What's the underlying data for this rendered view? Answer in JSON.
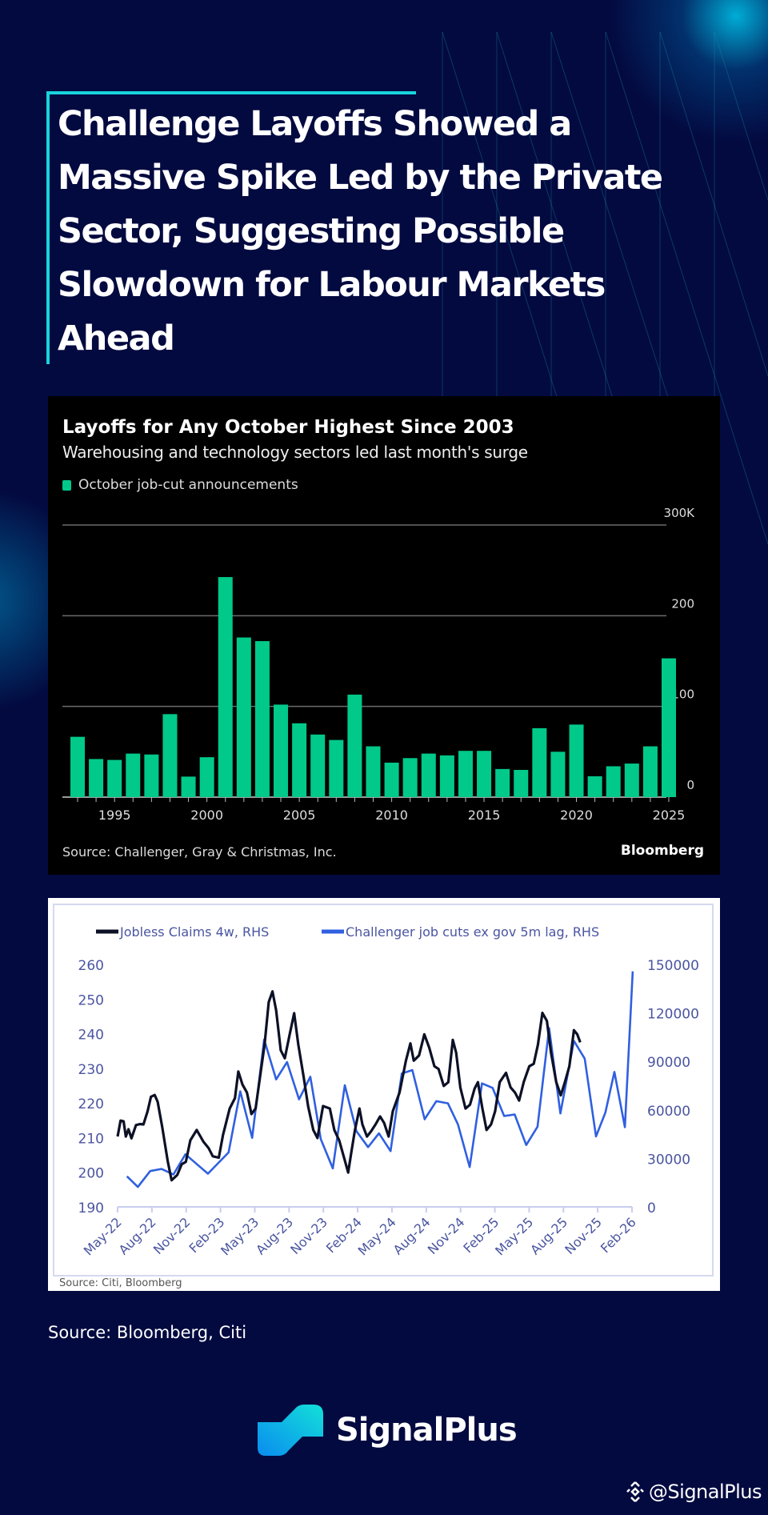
{
  "headline": "Challenge Layoffs Showed a Massive Spike Led by the Private Sector, Suggesting Possible Slowdown for Labour Markets Ahead",
  "colors": {
    "background": "#030a40",
    "accent": "#19d3dc",
    "bar": "#00c98a",
    "jobless": "#0d1126",
    "challenger": "#3060e0",
    "axis_text": "#4a55a0"
  },
  "chart_data": [
    {
      "type": "bar",
      "title": "Layoffs for Any October Highest Since 2003",
      "subtitle": "Warehousing and technology sectors led last month's surge",
      "legend": "October job-cut announcements",
      "source": "Source: Challenger, Gray & Christmas, Inc.",
      "brand": "Bloomberg",
      "categories": [
        1993,
        1994,
        1995,
        1996,
        1997,
        1998,
        1999,
        2000,
        2001,
        2002,
        2003,
        2004,
        2005,
        2006,
        2007,
        2008,
        2009,
        2010,
        2011,
        2012,
        2013,
        2014,
        2015,
        2016,
        2017,
        2018,
        2019,
        2020,
        2021,
        2022,
        2023,
        2024,
        2025
      ],
      "values": [
        66.5,
        42,
        41,
        48,
        47,
        91.5,
        22.6,
        44,
        242.6,
        176,
        172,
        102,
        81.4,
        69,
        63,
        113,
        56,
        38,
        43,
        48,
        46,
        51,
        51,
        31,
        30,
        76,
        50,
        80,
        23,
        34,
        37,
        56,
        153
      ],
      "unit": "thousands",
      "ylim": [
        0,
        300
      ],
      "y_ticks": [
        "0",
        "100",
        "200",
        "300K"
      ],
      "x_tick_labels": [
        "1995",
        "2000",
        "2005",
        "2010",
        "2015",
        "2020",
        "2025"
      ],
      "grid": true,
      "axis_side": "right"
    },
    {
      "type": "line",
      "legend_position": "top",
      "source": "Source: Citi, Bloomberg",
      "x_tick_labels": [
        "May-22",
        "Aug-22",
        "Nov-22",
        "Feb-23",
        "May-23",
        "Aug-23",
        "Nov-23",
        "Feb-24",
        "May-24",
        "Aug-24",
        "Nov-24",
        "Feb-25",
        "May-25",
        "Aug-25",
        "Nov-25",
        "Feb-26"
      ],
      "xlim": [
        "2022-05-01",
        "2026-02-01"
      ],
      "y_left": {
        "ticks": [
          "190",
          "200",
          "210",
          "220",
          "230",
          "240",
          "250",
          "260"
        ],
        "lim": [
          190,
          260
        ]
      },
      "y_right": {
        "ticks": [
          "0",
          "30000",
          "60000",
          "90000",
          "120000",
          "150000"
        ],
        "lim": [
          0,
          150000
        ]
      },
      "series": [
        {
          "name": "Jobless Claims 4w, RHS",
          "axis": "left",
          "points": [
            [
              "2022-05-01",
              210.3
            ],
            [
              "2022-05-09",
              214.9
            ],
            [
              "2022-05-17",
              214.7
            ],
            [
              "2022-05-23",
              210.3
            ],
            [
              "2022-05-30",
              212.4
            ],
            [
              "2022-06-07",
              209.8
            ],
            [
              "2022-06-19",
              213.6
            ],
            [
              "2022-06-30",
              213.9
            ],
            [
              "2022-07-09",
              213.8
            ],
            [
              "2022-07-20",
              217.6
            ],
            [
              "2022-07-29",
              221.8
            ],
            [
              "2022-08-08",
              222.3
            ],
            [
              "2022-08-16",
              220.3
            ],
            [
              "2022-08-28",
              213
            ],
            [
              "2022-09-12",
              203
            ],
            [
              "2022-09-22",
              197.7
            ],
            [
              "2022-10-07",
              199.2
            ],
            [
              "2022-10-19",
              202.3
            ],
            [
              "2022-10-30",
              203
            ],
            [
              "2022-11-11",
              209.2
            ],
            [
              "2022-11-28",
              212.2
            ],
            [
              "2022-12-16",
              208.8
            ],
            [
              "2022-12-30",
              206.9
            ],
            [
              "2023-01-10",
              204.6
            ],
            [
              "2023-01-26",
              204.2
            ],
            [
              "2023-02-06",
              210.7
            ],
            [
              "2023-02-24",
              218.4
            ],
            [
              "2023-03-10",
              221.4
            ],
            [
              "2023-03-19",
              229.1
            ],
            [
              "2023-03-30",
              225.3
            ],
            [
              "2023-04-11",
              223
            ],
            [
              "2023-04-23",
              216.8
            ],
            [
              "2023-05-04",
              218.4
            ],
            [
              "2023-05-16",
              227.6
            ],
            [
              "2023-05-28",
              236.8
            ],
            [
              "2023-06-08",
              249.1
            ],
            [
              "2023-06-18",
              252.2
            ],
            [
              "2023-06-28",
              246.7
            ],
            [
              "2023-07-10",
              235.2
            ],
            [
              "2023-07-21",
              232.9
            ],
            [
              "2023-08-03",
              239.8
            ],
            [
              "2023-08-15",
              245.9
            ],
            [
              "2023-08-26",
              236.8
            ],
            [
              "2023-09-09",
              227.6
            ],
            [
              "2023-09-21",
              219.1
            ],
            [
              "2023-10-05",
              212.2
            ],
            [
              "2023-10-16",
              209.9
            ],
            [
              "2023-10-31",
              219.1
            ],
            [
              "2023-11-18",
              218.4
            ],
            [
              "2023-11-30",
              212.2
            ],
            [
              "2023-12-13",
              209.2
            ],
            [
              "2023-12-25",
              204.6
            ],
            [
              "2024-01-06",
              199.9
            ],
            [
              "2024-01-15",
              206.1
            ],
            [
              "2024-01-24",
              212.2
            ],
            [
              "2024-02-05",
              218.4
            ],
            [
              "2024-02-13",
              213.8
            ],
            [
              "2024-02-25",
              210.3
            ],
            [
              "2024-03-07",
              211.8
            ],
            [
              "2024-03-19",
              213.8
            ],
            [
              "2024-03-31",
              216.1
            ],
            [
              "2024-04-11",
              214.2
            ],
            [
              "2024-04-23",
              210.3
            ],
            [
              "2024-05-04",
              217.6
            ],
            [
              "2024-05-22",
              223
            ],
            [
              "2024-06-08",
              232.2
            ],
            [
              "2024-06-20",
              237.2
            ],
            [
              "2024-06-29",
              232.2
            ],
            [
              "2024-07-13",
              233.7
            ],
            [
              "2024-07-27",
              239.8
            ],
            [
              "2024-08-09",
              236
            ],
            [
              "2024-08-23",
              230.6
            ],
            [
              "2024-09-03",
              229.8
            ],
            [
              "2024-09-17",
              224.9
            ],
            [
              "2024-09-29",
              226
            ],
            [
              "2024-10-11",
              238.2
            ],
            [
              "2024-10-20",
              234.5
            ],
            [
              "2024-10-31",
              224.5
            ],
            [
              "2024-11-14",
              218.4
            ],
            [
              "2024-11-26",
              219.5
            ],
            [
              "2024-12-08",
              224.1
            ],
            [
              "2024-12-17",
              226
            ],
            [
              "2024-12-29",
              218.4
            ],
            [
              "2025-01-09",
              212.2
            ],
            [
              "2025-01-21",
              213.8
            ],
            [
              "2025-02-01",
              217.6
            ],
            [
              "2025-02-13",
              226
            ],
            [
              "2025-03-02",
              228.7
            ],
            [
              "2025-03-14",
              224.5
            ],
            [
              "2025-03-26",
              223
            ],
            [
              "2025-04-06",
              220.7
            ],
            [
              "2025-04-18",
              226
            ],
            [
              "2025-05-03",
              230.6
            ],
            [
              "2025-05-15",
              231.3
            ],
            [
              "2025-05-26",
              236.8
            ],
            [
              "2025-06-07",
              246
            ],
            [
              "2025-06-19",
              243.7
            ],
            [
              "2025-06-30",
              234.5
            ],
            [
              "2025-07-14",
              226
            ],
            [
              "2025-07-26",
              222.2
            ],
            [
              "2025-08-06",
              226
            ],
            [
              "2025-08-18",
              230.6
            ],
            [
              "2025-08-30",
              241
            ],
            [
              "2025-09-08",
              239.8
            ],
            [
              "2025-09-16",
              237.5
            ]
          ]
        },
        {
          "name": "Challenger job cuts ex gov 5m lag, RHS",
          "axis": "right",
          "points": [
            [
              "2022-05-26",
              18890
            ],
            [
              "2022-06-24",
              12320
            ],
            [
              "2022-07-27",
              22180
            ],
            [
              "2022-08-26",
              23490
            ],
            [
              "2022-09-27",
              20040
            ],
            [
              "2022-10-29",
              32530
            ],
            [
              "2022-12-28",
              20530
            ],
            [
              "2023-02-21",
              33680
            ],
            [
              "2023-03-24",
              71470
            ],
            [
              "2023-04-25",
              42720
            ],
            [
              "2023-05-27",
              103500
            ],
            [
              "2023-06-28",
              78860
            ],
            [
              "2023-07-27",
              89540
            ],
            [
              "2023-08-28",
              66540
            ],
            [
              "2023-09-27",
              80500
            ],
            [
              "2023-10-25",
              41900
            ],
            [
              "2023-11-26",
              23820
            ],
            [
              "2023-12-28",
              75250
            ],
            [
              "2024-01-28",
              46820
            ],
            [
              "2024-02-28",
              36970
            ],
            [
              "2024-03-28",
              45510
            ],
            [
              "2024-04-28",
              34500
            ],
            [
              "2024-05-28",
              82480
            ],
            [
              "2024-06-25",
              84610
            ],
            [
              "2024-07-28",
              54220
            ],
            [
              "2024-08-28",
              65390
            ],
            [
              "2024-09-28",
              64070
            ],
            [
              "2024-10-25",
              50930
            ],
            [
              "2024-11-25",
              24640
            ],
            [
              "2024-12-28",
              76400
            ],
            [
              "2025-01-25",
              73600
            ],
            [
              "2025-02-25",
              56190
            ],
            [
              "2025-03-25",
              57170
            ],
            [
              "2025-04-25",
              38280
            ],
            [
              "2025-05-25",
              49620
            ],
            [
              "2025-06-25",
              110570
            ],
            [
              "2025-07-25",
              57830
            ],
            [
              "2025-08-30",
              102680
            ],
            [
              "2025-09-28",
              91680
            ],
            [
              "2025-10-28",
              43540
            ],
            [
              "2025-11-22",
              58320
            ],
            [
              "2025-12-16",
              83460
            ],
            [
              "2026-01-13",
              49290
            ],
            [
              "2026-02-03",
              145700
            ]
          ]
        }
      ]
    }
  ],
  "footer": {
    "source": "Source: Bloomberg, Citi",
    "logo_text": "SignalPlus",
    "watermark": "@SignalPlus"
  }
}
